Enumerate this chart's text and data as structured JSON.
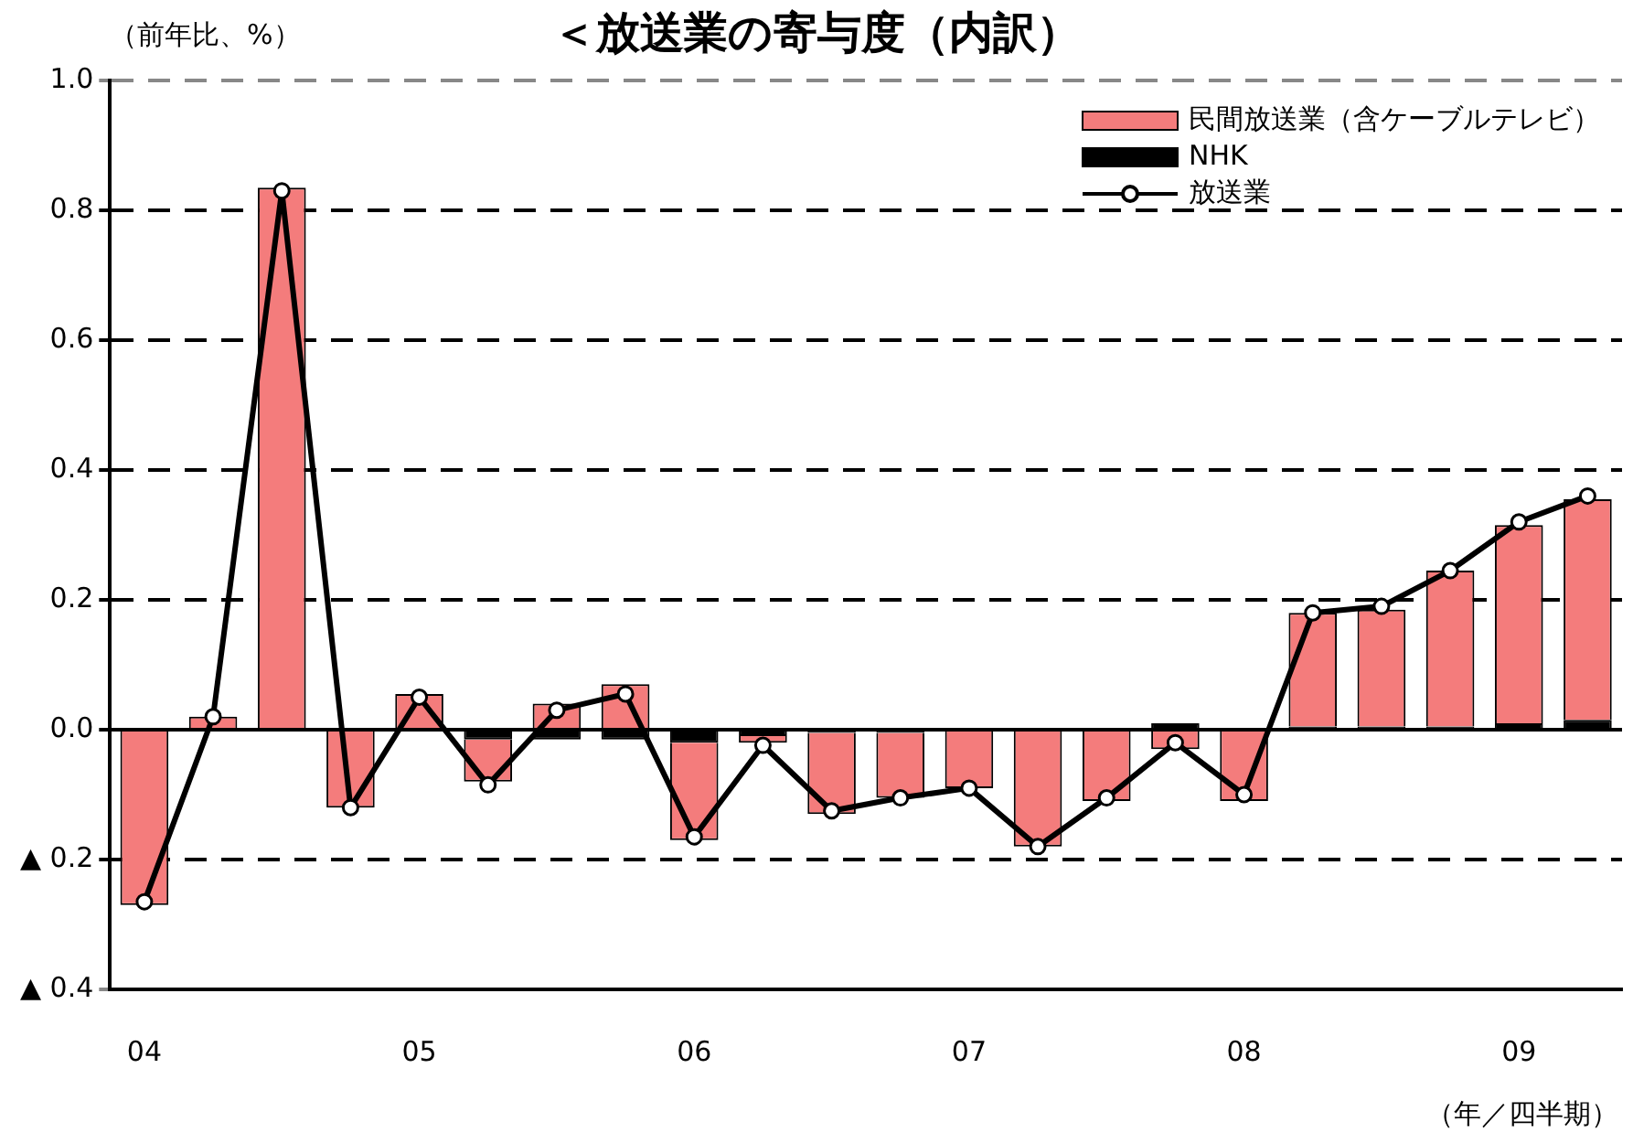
{
  "chart_data": {
    "type": "bar",
    "title": "＜放送業の寄与度（内訳）",
    "ylabel": "（前年比、%）",
    "xlabel": "（年／四半期）",
    "categories": [
      "04",
      null,
      null,
      null,
      "05",
      null,
      null,
      null,
      "06",
      null,
      null,
      null,
      "07",
      null,
      null,
      null,
      "08",
      null,
      null,
      null,
      "09",
      null
    ],
    "stacked": true,
    "series": [
      {
        "name": "NHK",
        "color": "#000000",
        "values": [
          0,
          0,
          0,
          0,
          0,
          -0.015,
          -0.015,
          -0.015,
          -0.02,
          -0.01,
          -0.005,
          -0.005,
          0,
          0,
          0,
          0.01,
          0,
          0.005,
          0.005,
          0.005,
          0.01,
          0.015
        ]
      },
      {
        "name": "民間放送業（含ケーブルテレビ）",
        "color": "#f47c7c",
        "values": [
          -0.27,
          0.02,
          0.835,
          -0.12,
          0.055,
          -0.065,
          0.04,
          0.07,
          -0.15,
          -0.01,
          -0.125,
          -0.1,
          -0.09,
          -0.18,
          -0.11,
          -0.03,
          -0.11,
          0.175,
          0.18,
          0.24,
          0.305,
          0.34
        ]
      },
      {
        "name": "放送業",
        "type": "line",
        "color": "#000000",
        "marker": "circle",
        "values": [
          -0.265,
          0.02,
          0.83,
          -0.12,
          0.05,
          -0.085,
          0.03,
          0.055,
          -0.165,
          -0.024,
          -0.125,
          -0.105,
          -0.09,
          -0.18,
          -0.105,
          -0.02,
          -0.1,
          0.18,
          0.19,
          0.245,
          0.32,
          0.36
        ]
      }
    ],
    "ylim": [
      -0.4,
      1.0
    ],
    "yticks": [
      {
        "value": -0.4,
        "label": "▲ 0.4"
      },
      {
        "value": -0.2,
        "label": "▲ 0.2"
      },
      {
        "value": 0,
        "label": "0.0"
      },
      0.2,
      0.4,
      0.6,
      0.8,
      {
        "value": 1.0,
        "label": "1.0"
      }
    ],
    "grid": "y",
    "legend": "top right"
  }
}
